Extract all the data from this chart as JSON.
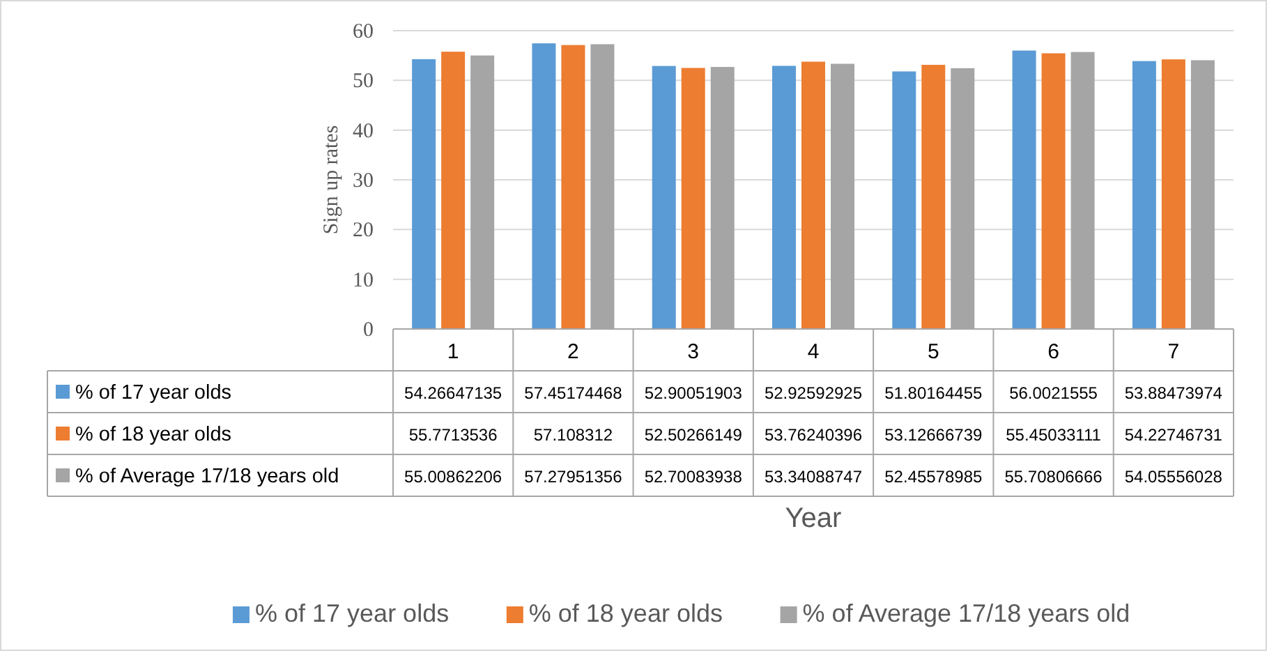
{
  "chart_data": {
    "type": "bar",
    "xlabel": "Year",
    "ylabel": "Sign up rates",
    "categories": [
      "1",
      "2",
      "3",
      "4",
      "5",
      "6",
      "7"
    ],
    "series": [
      {
        "name": "% of 17 year olds",
        "color": "#5b9bd5",
        "values": [
          54.26647135,
          57.45174468,
          52.90051903,
          52.92592925,
          51.80164455,
          56.0021555,
          53.88473974
        ]
      },
      {
        "name": "% of 18 year olds",
        "color": "#ed7d31",
        "values": [
          55.7713536,
          57.108312,
          52.50266149,
          53.76240396,
          53.12666739,
          55.45033111,
          54.22746731
        ]
      },
      {
        "name": "% of Average 17/18 years old",
        "color": "#a5a5a5",
        "values": [
          55.00862206,
          57.27951356,
          52.70083938,
          53.34088747,
          52.45578985,
          55.70806666,
          54.05556028
        ]
      }
    ],
    "ylim": [
      0,
      60
    ],
    "yticks": [
      0,
      10,
      20,
      30,
      40,
      50,
      60
    ],
    "grid": "y",
    "legend": "bottom",
    "data_labels": true
  }
}
